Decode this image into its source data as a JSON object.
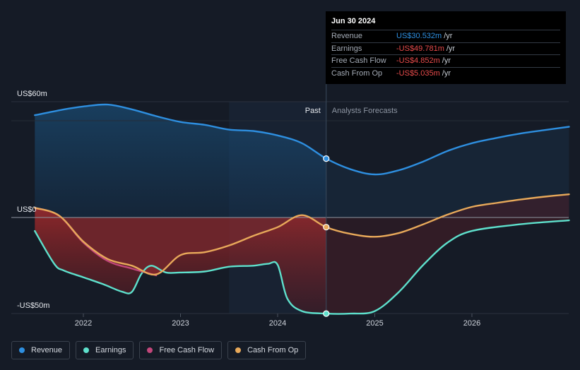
{
  "chart_data": {
    "type": "line",
    "y_labels": [
      "US$60m",
      "US$0",
      "-US$50m"
    ],
    "ylim": [
      -50,
      60
    ],
    "x_ticks": [
      "2022",
      "2023",
      "2024",
      "2025",
      "2026"
    ],
    "past_label": "Past",
    "forecast_label": "Analysts Forecasts",
    "past_forecast_split": 2024.5,
    "series": [
      {
        "name": "Revenue",
        "color": "#2e8fe0",
        "x": [
          2021.5,
          2021.8,
          2022.0,
          2022.25,
          2022.5,
          2022.75,
          2023.0,
          2023.25,
          2023.5,
          2023.75,
          2024.0,
          2024.25,
          2024.5,
          2024.75,
          2025.0,
          2025.25,
          2025.5,
          2025.75,
          2026.0,
          2026.25,
          2026.5,
          2026.75,
          2027.0
        ],
        "values": [
          53.0,
          56.0,
          57.5,
          58.5,
          56.0,
          52.5,
          49.5,
          48.0,
          45.5,
          44.8,
          42.5,
          38.5,
          30.5,
          25.0,
          22.3,
          24.5,
          29.0,
          34.5,
          38.5,
          41.2,
          43.5,
          45.3,
          47.0
        ]
      },
      {
        "name": "Earnings",
        "color": "#5ee0cc",
        "x": [
          2021.5,
          2021.7,
          2021.8,
          2022.0,
          2022.2,
          2022.4,
          2022.5,
          2022.6,
          2022.7,
          2022.85,
          2023.0,
          2023.25,
          2023.5,
          2023.75,
          2023.9,
          2024.0,
          2024.1,
          2024.25,
          2024.5,
          2024.75,
          2025.0,
          2025.25,
          2025.5,
          2025.75,
          2026.0,
          2026.5,
          2027.0
        ],
        "values": [
          -7.0,
          -24.0,
          -27.5,
          -31.0,
          -34.5,
          -38.5,
          -38.5,
          -29.0,
          -25.0,
          -28.5,
          -28.5,
          -28.0,
          -25.5,
          -25.0,
          -24.0,
          -24.5,
          -42.0,
          -48.5,
          -49.8,
          -49.8,
          -48.5,
          -38.5,
          -24.5,
          -13.0,
          -7.0,
          -3.5,
          -1.5
        ]
      },
      {
        "name": "Free Cash Flow",
        "color": "#c2477b",
        "x": [
          2021.5,
          2021.75,
          2022.0,
          2022.25,
          2022.5,
          2022.75
        ],
        "values": [
          5.0,
          1.0,
          -13.0,
          -22.5,
          -26.5,
          -30.0
        ]
      },
      {
        "name": "Cash From Op",
        "color": "#e8a95a",
        "x": [
          2021.5,
          2021.75,
          2022.0,
          2022.25,
          2022.5,
          2022.75,
          2023.0,
          2023.25,
          2023.5,
          2023.75,
          2024.0,
          2024.25,
          2024.5,
          2024.75,
          2025.0,
          2025.25,
          2025.5,
          2025.75,
          2026.0,
          2026.25,
          2026.5,
          2026.75,
          2027.0
        ],
        "values": [
          5.0,
          1.0,
          -12.5,
          -21.5,
          -25.0,
          -29.5,
          -19.5,
          -18.0,
          -14.5,
          -9.5,
          -5.0,
          1.2,
          -5.0,
          -8.5,
          -10.0,
          -8.0,
          -3.5,
          1.5,
          5.5,
          7.5,
          9.3,
          10.8,
          12.0
        ]
      }
    ],
    "highlight": {
      "x": 2024.5,
      "date": "Jun 30 2024",
      "points": [
        30.5,
        -49.8,
        -5.0
      ]
    }
  },
  "tooltip": {
    "date": "Jun 30 2024",
    "rows": [
      {
        "label": "Revenue",
        "value": "US$30.532m",
        "unit": "/yr",
        "color": "#2e8fe0"
      },
      {
        "label": "Earnings",
        "value": "-US$49.781m",
        "unit": "/yr",
        "color": "#e84b4b"
      },
      {
        "label": "Free Cash Flow",
        "value": "-US$4.852m",
        "unit": "/yr",
        "color": "#e84b4b"
      },
      {
        "label": "Cash From Op",
        "value": "-US$5.035m",
        "unit": "/yr",
        "color": "#e84b4b"
      }
    ]
  },
  "legend": [
    {
      "label": "Revenue",
      "color": "#2e8fe0"
    },
    {
      "label": "Earnings",
      "color": "#5ee0cc"
    },
    {
      "label": "Free Cash Flow",
      "color": "#c2477b"
    },
    {
      "label": "Cash From Op",
      "color": "#e8a95a"
    }
  ]
}
